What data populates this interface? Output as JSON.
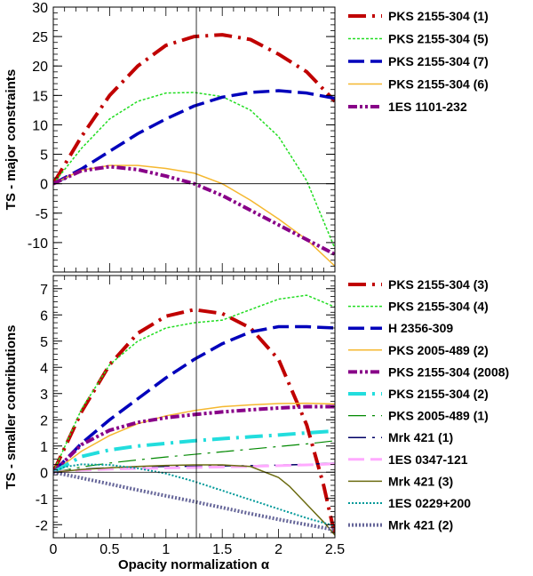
{
  "chart_data": [
    {
      "type": "line",
      "panel": "top",
      "ylabel": "TS - major constraints",
      "xlim": [
        0,
        2.5
      ],
      "ylim": [
        -15,
        30
      ],
      "yticks": [
        -10,
        -5,
        0,
        5,
        10,
        15,
        20,
        25,
        30
      ],
      "ytick_labels": [
        "-10",
        "-5",
        "0",
        "5",
        "10",
        "15",
        "20",
        "25",
        "30"
      ],
      "vline_x": 1.27,
      "hline_y": 0,
      "series": [
        {
          "name": "PKS 2155-304 (1)",
          "color": "#c00000",
          "dash": "dashdot",
          "width": 4,
          "x": [
            0,
            0.25,
            0.5,
            0.75,
            1.0,
            1.25,
            1.5,
            1.75,
            2.0,
            2.25,
            2.5
          ],
          "y": [
            0,
            8,
            15,
            20,
            23.5,
            25.0,
            25.3,
            24.5,
            22,
            19,
            14
          ]
        },
        {
          "name": "PKS 2155-304 (5)",
          "color": "#22dd22",
          "dash": "short",
          "width": 1.5,
          "x": [
            0,
            0.25,
            0.5,
            0.75,
            1.0,
            1.25,
            1.5,
            1.75,
            2.0,
            2.25,
            2.5
          ],
          "y": [
            0,
            6,
            11,
            14,
            15.4,
            15.5,
            14.8,
            12.5,
            8,
            0.5,
            -11
          ]
        },
        {
          "name": "PKS 2155-304 (7)",
          "color": "#0000bb",
          "dash": "long",
          "width": 3.5,
          "x": [
            0,
            0.25,
            0.5,
            0.75,
            1.0,
            1.25,
            1.5,
            1.75,
            2.0,
            2.25,
            2.5
          ],
          "y": [
            0,
            2.5,
            5.5,
            8.5,
            11,
            13.2,
            14.7,
            15.5,
            15.8,
            15.4,
            14.5
          ]
        },
        {
          "name": "PKS 2155-304 (6)",
          "color": "#f5b830",
          "dash": "solid",
          "width": 1.5,
          "x": [
            0,
            0.25,
            0.5,
            0.75,
            1.0,
            1.25,
            1.5,
            1.75,
            2.0,
            2.25,
            2.5
          ],
          "y": [
            0,
            2.3,
            3.1,
            3.1,
            2.6,
            1.8,
            0,
            -2.8,
            -6,
            -9.5,
            -14
          ]
        },
        {
          "name": "1ES 1101-232",
          "color": "#880088",
          "dash": "dashdotdot",
          "width": 4,
          "x": [
            0,
            0.25,
            0.5,
            0.75,
            1.0,
            1.25,
            1.5,
            1.75,
            2.0,
            2.25,
            2.5
          ],
          "y": [
            0,
            2.2,
            2.9,
            2.4,
            1.3,
            0,
            -2,
            -4.5,
            -7,
            -9.5,
            -12
          ]
        }
      ]
    },
    {
      "type": "line",
      "panel": "bottom",
      "xlabel": "Opacity normalization α",
      "ylabel": "TS - smaller contributions",
      "xlim": [
        0,
        2.5
      ],
      "ylim": [
        -2.5,
        7.5
      ],
      "xticks": [
        0,
        0.5,
        1,
        1.5,
        2,
        2.5
      ],
      "xtick_labels": [
        "0",
        "0.5",
        "1",
        "1.5",
        "2",
        "2.5"
      ],
      "yticks": [
        -2,
        -1,
        0,
        1,
        2,
        3,
        4,
        5,
        6,
        7
      ],
      "ytick_labels": [
        "-2",
        "-1",
        "0",
        "1",
        "2",
        "3",
        "4",
        "5",
        "6",
        "7"
      ],
      "vline_x": 1.27,
      "hline_y": 0,
      "series": [
        {
          "name": "PKS 2155-304 (3)",
          "color": "#c00000",
          "dash": "dashdot",
          "width": 4,
          "x": [
            0,
            0.25,
            0.5,
            0.75,
            1.0,
            1.25,
            1.5,
            1.75,
            2.0,
            2.25,
            2.4,
            2.5
          ],
          "y": [
            0,
            2.3,
            4.1,
            5.3,
            5.95,
            6.2,
            6.05,
            5.5,
            4.3,
            1.8,
            -0.5,
            -2.4
          ]
        },
        {
          "name": "PKS 2155-304 (4)",
          "color": "#22dd22",
          "dash": "short",
          "width": 1.5,
          "x": [
            0,
            0.25,
            0.5,
            0.75,
            1.0,
            1.25,
            1.5,
            1.75,
            2.0,
            2.25,
            2.5
          ],
          "y": [
            0,
            2.4,
            4.1,
            5.0,
            5.5,
            5.7,
            5.8,
            6.2,
            6.6,
            6.75,
            6.3
          ]
        },
        {
          "name": "H 2356-309",
          "color": "#0000bb",
          "dash": "long",
          "width": 3.5,
          "x": [
            0,
            0.25,
            0.5,
            0.75,
            1.0,
            1.25,
            1.5,
            1.75,
            2.0,
            2.25,
            2.5
          ],
          "y": [
            0,
            1.1,
            2.0,
            2.8,
            3.6,
            4.3,
            4.9,
            5.35,
            5.55,
            5.55,
            5.5
          ]
        },
        {
          "name": "PKS 2005-489 (2)",
          "color": "#f5b830",
          "dash": "solid",
          "width": 1.5,
          "x": [
            0,
            0.25,
            0.5,
            0.75,
            1.0,
            1.25,
            1.5,
            1.75,
            2.0,
            2.25,
            2.5
          ],
          "y": [
            0,
            0.8,
            1.4,
            1.85,
            2.15,
            2.35,
            2.5,
            2.57,
            2.62,
            2.63,
            2.6
          ]
        },
        {
          "name": "PKS 2155-304 (2008)",
          "color": "#880088",
          "dash": "dashdotdot",
          "width": 4,
          "x": [
            0,
            0.25,
            0.5,
            0.75,
            1.0,
            1.25,
            1.5,
            1.75,
            2.0,
            2.25,
            2.5
          ],
          "y": [
            0,
            1.05,
            1.6,
            1.9,
            2.08,
            2.2,
            2.3,
            2.38,
            2.45,
            2.5,
            2.5
          ]
        },
        {
          "name": "PKS 2155-304 (2)",
          "color": "#22dddd",
          "dash": "dashdot",
          "width": 4,
          "x": [
            0,
            0.25,
            0.5,
            0.75,
            1.0,
            1.25,
            1.5,
            1.75,
            2.0,
            2.25,
            2.5
          ],
          "y": [
            0,
            0.6,
            0.85,
            1.0,
            1.1,
            1.2,
            1.28,
            1.35,
            1.42,
            1.5,
            1.57
          ]
        },
        {
          "name": "PKS 2005-489 (1)",
          "color": "#008800",
          "dash": "dashdot",
          "width": 1.2,
          "x": [
            0,
            0.25,
            0.5,
            0.75,
            1.0,
            1.25,
            1.5,
            1.75,
            2.0,
            2.25,
            2.5
          ],
          "y": [
            0,
            0.2,
            0.35,
            0.47,
            0.58,
            0.68,
            0.78,
            0.88,
            0.98,
            1.08,
            1.2
          ]
        },
        {
          "name": "Mrk 421 (1)",
          "color": "#000066",
          "dash": "dashdot",
          "width": 1.5,
          "x": [
            0,
            0.25,
            0.5,
            0.75,
            1.0,
            1.25,
            1.5,
            1.75,
            2.0,
            2.25,
            2.5
          ],
          "y": [
            0,
            0.12,
            0.17,
            0.2,
            0.22,
            0.23,
            0.24,
            0.25,
            0.27,
            0.3,
            0.35
          ]
        },
        {
          "name": "1ES 0347-121",
          "color": "#ffaaff",
          "dash": "long",
          "width": 3,
          "x": [
            0,
            0.25,
            0.5,
            0.75,
            1.0,
            1.25,
            1.5,
            1.75,
            2.0,
            2.25,
            2.5
          ],
          "y": [
            0,
            0.08,
            0.12,
            0.14,
            0.16,
            0.18,
            0.2,
            0.22,
            0.25,
            0.28,
            0.32
          ]
        },
        {
          "name": "Mrk 421 (3)",
          "color": "#6b6b10",
          "dash": "solid",
          "width": 1.5,
          "x": [
            0,
            0.25,
            0.5,
            0.75,
            1.0,
            1.25,
            1.5,
            1.75,
            2.0,
            2.1,
            2.2,
            2.3,
            2.4,
            2.5
          ],
          "y": [
            0,
            0.1,
            0.17,
            0.22,
            0.26,
            0.28,
            0.28,
            0.22,
            -0.2,
            -0.55,
            -1.0,
            -1.45,
            -1.9,
            -2.4
          ]
        },
        {
          "name": "1ES 0229+200",
          "color": "#009999",
          "dash": "dotted",
          "width": 2,
          "x": [
            0,
            0.1,
            0.25,
            0.5,
            0.75,
            1.0,
            1.25,
            1.5,
            1.75,
            2.0,
            2.25,
            2.5
          ],
          "y": [
            0,
            0.2,
            0.3,
            0.28,
            0.15,
            -0.05,
            -0.35,
            -0.7,
            -1.05,
            -1.4,
            -1.75,
            -2.05
          ]
        },
        {
          "name": "Mrk 421 (2)",
          "color": "#666699",
          "dash": "dotted",
          "width": 4,
          "x": [
            0,
            0.25,
            0.5,
            0.75,
            1.0,
            1.25,
            1.5,
            1.75,
            2.0,
            2.25,
            2.5
          ],
          "y": [
            0,
            -0.22,
            -0.45,
            -0.68,
            -0.9,
            -1.12,
            -1.35,
            -1.58,
            -1.8,
            -2.0,
            -2.2
          ]
        }
      ]
    }
  ]
}
